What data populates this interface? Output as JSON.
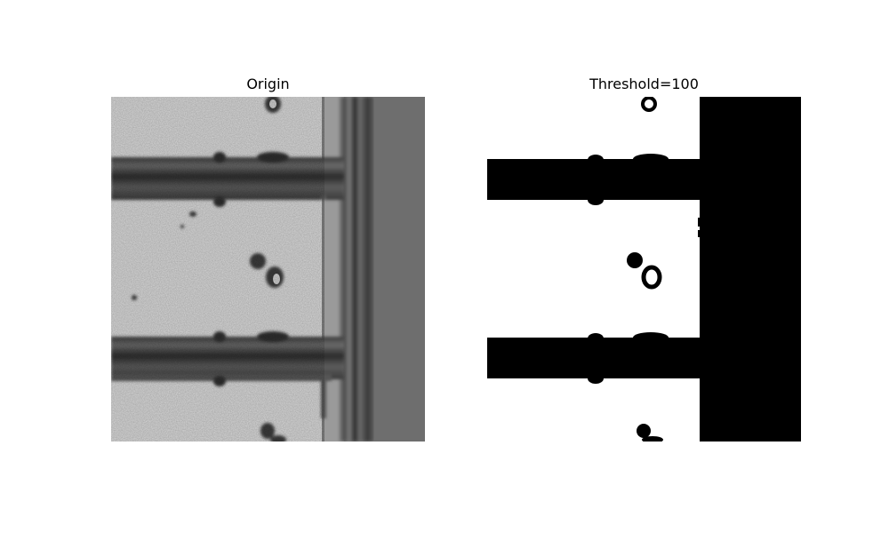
{
  "figure": {
    "panels": [
      {
        "title": "Origin",
        "image": "grayscale-micrograph-electrode-structure"
      },
      {
        "title": "Threshold=100",
        "image": "binary-threshold-result"
      }
    ]
  },
  "colors": {
    "background": "#ffffff",
    "gray_light": "#d6d6d6",
    "gray_dark": "#3a3a3a",
    "gray_mid": "#707070",
    "binary_black": "#000000",
    "binary_white": "#ffffff"
  }
}
